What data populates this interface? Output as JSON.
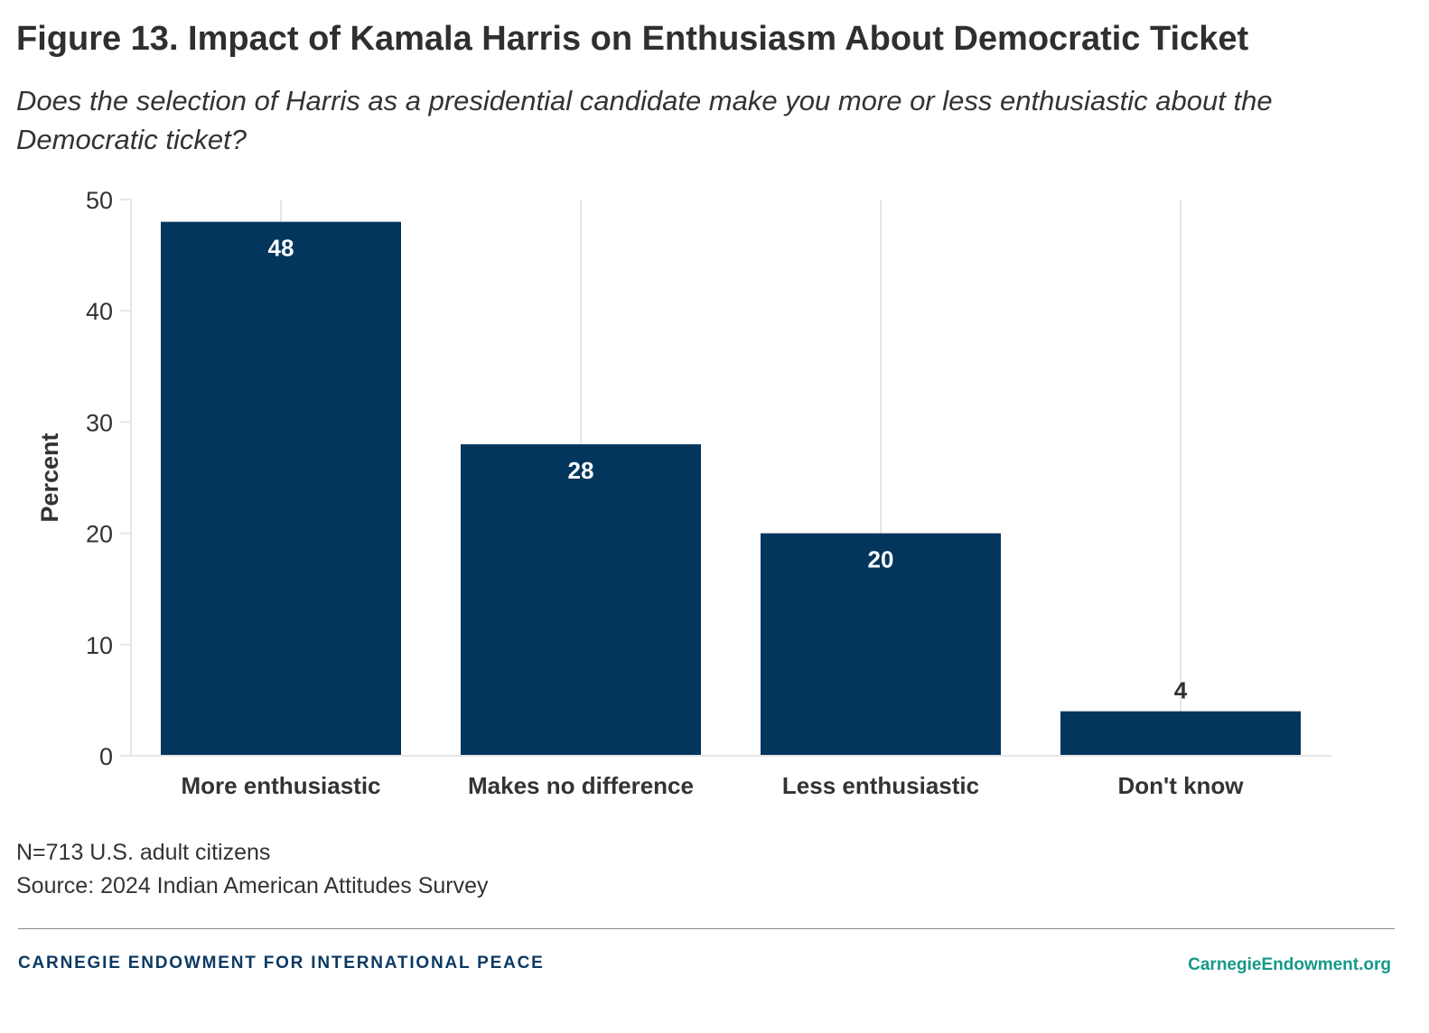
{
  "title": "Figure 13. Impact of Kamala Harris on Enthusiasm About Democratic Ticket",
  "subtitle": "Does the selection of Harris as a presidential candidate make you more or less enthusiastic about the Democratic ticket?",
  "notes": {
    "sample": "N=713 U.S. adult citizens",
    "source": "Source: 2024 Indian American Attitudes Survey"
  },
  "footer": {
    "organization": "CARNEGIE ENDOWMENT FOR INTERNATIONAL PEACE",
    "url": "CarnegieEndowment.org"
  },
  "colors": {
    "bar": "#03365d",
    "bar_label_inside": "#ffffff",
    "bar_label_outside": "#2f2f2f",
    "grid": "#e6e6e6",
    "axis_text": "#333333",
    "footer_org": "#0b3a63",
    "footer_url": "#14998a"
  },
  "chart_data": {
    "type": "bar",
    "categories": [
      "More enthusiastic",
      "Makes no difference",
      "Less enthusiastic",
      "Don't know"
    ],
    "values": [
      48,
      28,
      20,
      4
    ],
    "data_labels": [
      "48",
      "28",
      "20",
      "4"
    ],
    "xlabel": "",
    "ylabel": "Percent",
    "ylim": [
      0,
      50
    ],
    "yticks": [
      0,
      10,
      20,
      30,
      40,
      50
    ],
    "grid": "vertical lines at categories",
    "legend": "none"
  }
}
